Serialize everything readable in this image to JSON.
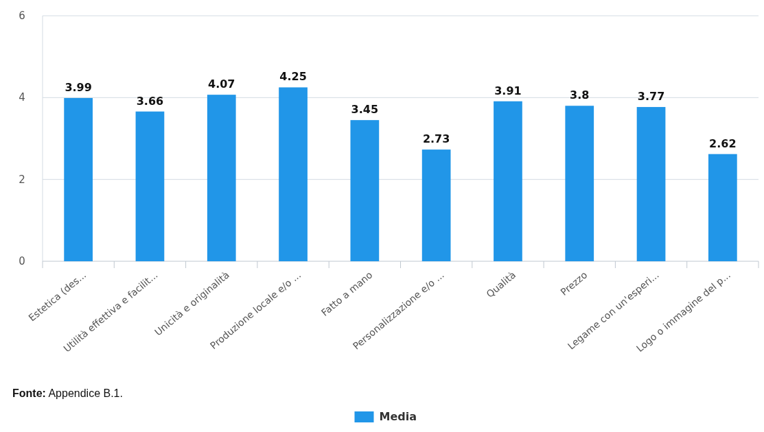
{
  "chart_data": {
    "type": "bar",
    "categories": [
      "Estetica (des...",
      "Utilità effettiva e facilit...",
      "Unicità e originalità",
      "Produzione locale e/o ...",
      "Fatto a mano",
      "Personalizzazione e/o ...",
      "Qualità",
      "Prezzo",
      "Legame con un'esperi...",
      "Logo o immagine del p..."
    ],
    "series": [
      {
        "name": "Media",
        "color": "#2196e8",
        "values": [
          3.99,
          3.66,
          4.07,
          4.25,
          3.45,
          2.73,
          3.91,
          3.8,
          3.77,
          2.62
        ]
      }
    ],
    "ylim": [
      0,
      6
    ],
    "yticks": [
      0,
      2,
      4,
      6
    ],
    "grid": "y",
    "legend": "bottom",
    "data_labels": true,
    "annotations": [
      "Fonte: Appendice B.1."
    ]
  }
}
